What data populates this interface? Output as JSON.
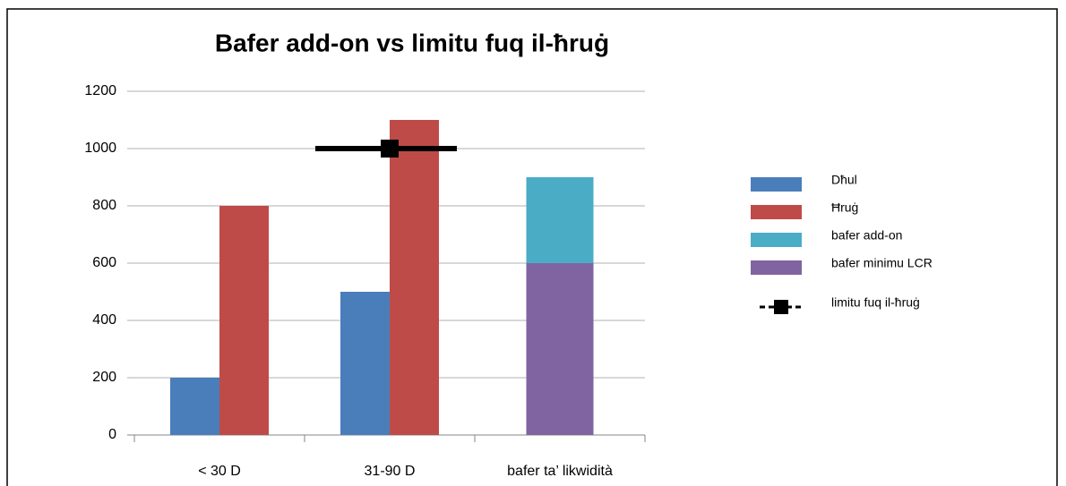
{
  "chart_data": {
    "type": "bar",
    "title": "Bafer add-on vs limitu fuq il-ħruġ",
    "categories": [
      "< 30 D",
      "31-90 D",
      "bafer ta’ likwidità"
    ],
    "series": [
      {
        "name": "Dħul",
        "color": "#4a7ebb",
        "values": [
          200,
          500,
          null
        ]
      },
      {
        "name": "Ħruġ",
        "color": "#be4b48",
        "values": [
          800,
          1100,
          null
        ]
      },
      {
        "name": "bafer add-on",
        "color": "#4bacc6",
        "values": [
          null,
          null,
          300
        ],
        "stacked": true
      },
      {
        "name": "bafer minimu LCR",
        "color": "#8064a2",
        "values": [
          null,
          null,
          600
        ],
        "stacked": true
      },
      {
        "name": "limitu fuq il-ħruġ",
        "color": "#000000",
        "values": [
          null,
          1000,
          null
        ],
        "type": "line"
      }
    ],
    "ylim": [
      0,
      1200
    ],
    "yticks": [
      0,
      200,
      400,
      600,
      800,
      1000,
      1200
    ],
    "grid": true,
    "legend": "right"
  }
}
